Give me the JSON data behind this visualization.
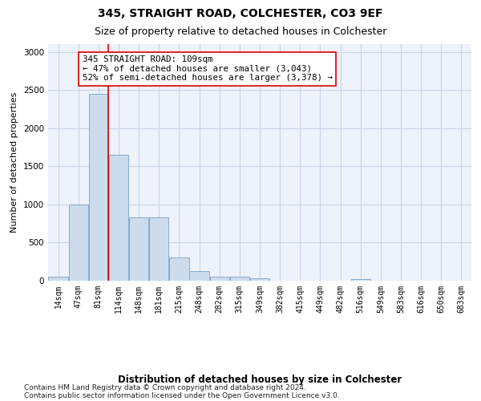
{
  "title1": "345, STRAIGHT ROAD, COLCHESTER, CO3 9EF",
  "title2": "Size of property relative to detached houses in Colchester",
  "xlabel": "Distribution of detached houses by size in Colchester",
  "ylabel": "Number of detached properties",
  "footnote1": "Contains HM Land Registry data © Crown copyright and database right 2024.",
  "footnote2": "Contains public sector information licensed under the Open Government Licence v3.0.",
  "annotation_title": "345 STRAIGHT ROAD: 109sqm",
  "annotation_line1": "← 47% of detached houses are smaller (3,043)",
  "annotation_line2": "52% of semi-detached houses are larger (3,378) →",
  "bar_color": "#ccdcec",
  "bar_edge_color": "#88aacc",
  "redline_color": "#dd0000",
  "categories": [
    "14sqm",
    "47sqm",
    "81sqm",
    "114sqm",
    "148sqm",
    "181sqm",
    "215sqm",
    "248sqm",
    "282sqm",
    "315sqm",
    "349sqm",
    "382sqm",
    "415sqm",
    "449sqm",
    "482sqm",
    "516sqm",
    "549sqm",
    "583sqm",
    "616sqm",
    "650sqm",
    "683sqm"
  ],
  "values": [
    50,
    1000,
    2450,
    1650,
    830,
    830,
    300,
    130,
    55,
    55,
    30,
    0,
    0,
    0,
    0,
    25,
    0,
    0,
    0,
    0,
    0
  ],
  "redline_bar_index": 3,
  "ylim": [
    0,
    3100
  ],
  "yticks": [
    0,
    500,
    1000,
    1500,
    2000,
    2500,
    3000
  ],
  "grid_color": "#c8d4e8",
  "background_color": "#eef2fb",
  "title1_fontsize": 10,
  "title2_fontsize": 9,
  "ylabel_fontsize": 8,
  "tick_fontsize": 7.5,
  "xtick_fontsize": 7,
  "annotation_fontsize": 7.8,
  "xlabel_fontsize": 8.5,
  "footnote_fontsize": 6.5
}
